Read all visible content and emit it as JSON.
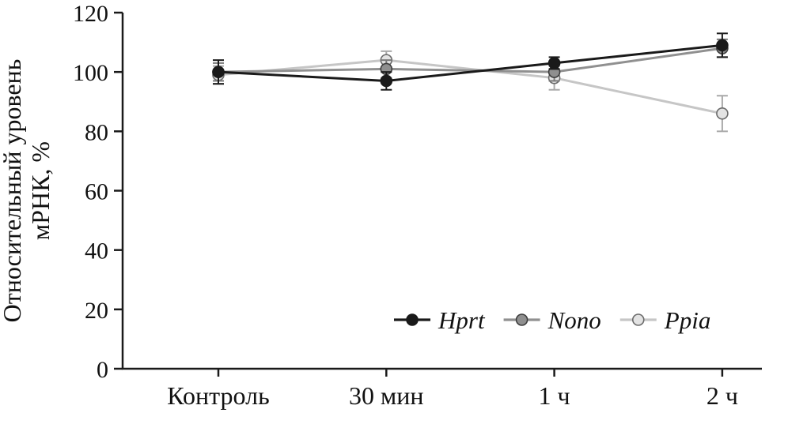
{
  "chart_data": {
    "type": "line",
    "title": "",
    "xlabel": "",
    "ylabel": "Относительный уровень мРНК, %",
    "ylabel_lines": [
      "Относительный уровень",
      "мРНК, %"
    ],
    "categories": [
      "Контроль",
      "30 мин",
      "1 ч",
      "2 ч"
    ],
    "ylim": [
      0,
      120
    ],
    "yticks": [
      0,
      20,
      40,
      60,
      80,
      100,
      120
    ],
    "grid": false,
    "legend_position": "bottom-right-inside",
    "series": [
      {
        "name": "Hprt",
        "values": [
          100,
          97,
          103,
          109
        ],
        "errors": [
          4,
          3,
          2,
          4
        ],
        "line_color": "#1a1a1a",
        "marker_fill": "#1a1a1a",
        "marker_stroke": "#1a1a1a",
        "error_color": "#1a1a1a"
      },
      {
        "name": "Nono",
        "values": [
          100,
          101,
          100,
          108
        ],
        "errors": [
          3,
          3,
          3,
          3
        ],
        "line_color": "#909090",
        "marker_fill": "#8f8f8f",
        "marker_stroke": "#3d3d3d",
        "error_color": "#7a7a7a"
      },
      {
        "name": "Ppia",
        "values": [
          99,
          104,
          98,
          86
        ],
        "errors": [
          3,
          3,
          4,
          6
        ],
        "line_color": "#c6c6c6",
        "marker_fill": "#e3e3e3",
        "marker_stroke": "#6b6b6b",
        "error_color": "#a9a9a9"
      }
    ]
  }
}
